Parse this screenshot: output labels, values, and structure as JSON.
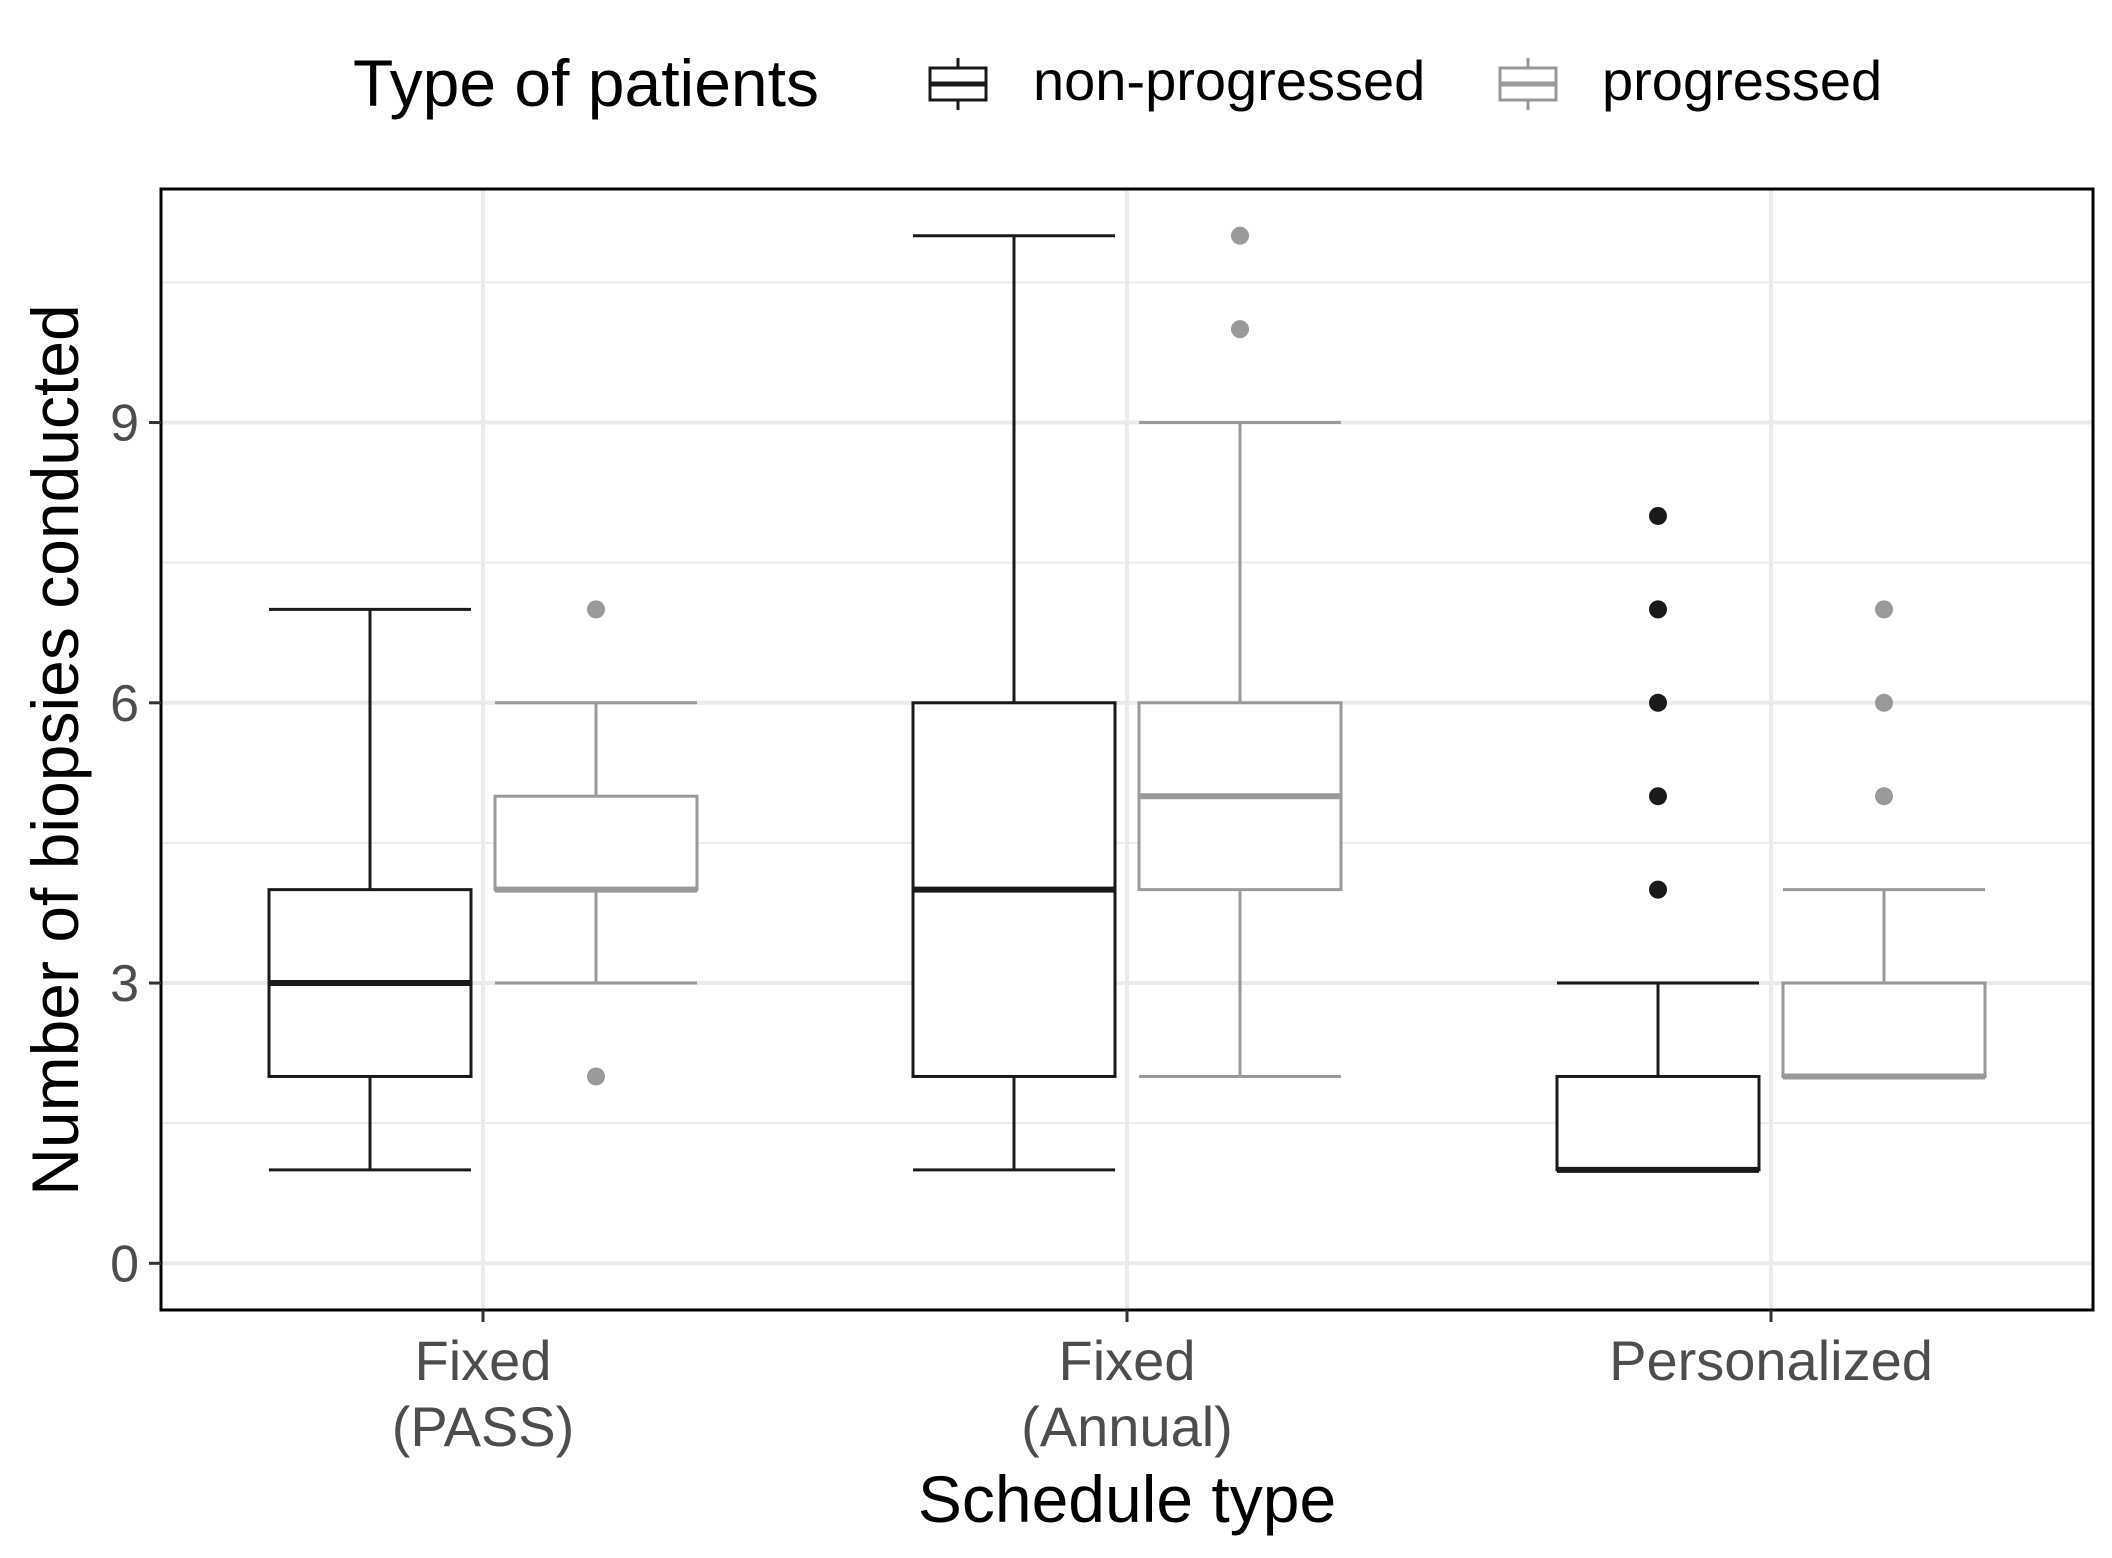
{
  "chart_data": {
    "type": "boxplot",
    "xlabel": "Schedule type",
    "ylabel": "Number of biopsies conducted",
    "ylim": [
      -0.5,
      11.5
    ],
    "yticks": [
      0,
      3,
      6,
      9
    ],
    "grid": true,
    "legend_position": "top",
    "legend": {
      "title": "Type of patients",
      "entries": [
        {
          "label": "non-progressed",
          "color": "#1a1a1a"
        },
        {
          "label": "progressed",
          "color": "#999999"
        }
      ]
    },
    "categories": [
      {
        "label_lines": [
          "Fixed",
          "(PASS)"
        ]
      },
      {
        "label_lines": [
          "Fixed",
          "(Annual)"
        ]
      },
      {
        "label_lines": [
          "Personalized"
        ]
      }
    ],
    "series": [
      {
        "name": "non-progressed",
        "color": "#1a1a1a",
        "boxes": [
          {
            "whisker_low": 1,
            "q1": 2,
            "median": 3,
            "q3": 4,
            "whisker_high": 7,
            "outliers": []
          },
          {
            "whisker_low": 1,
            "q1": 2,
            "median": 4,
            "q3": 6,
            "whisker_high": 11,
            "outliers": []
          },
          {
            "whisker_low": 1,
            "q1": 1,
            "median": 1,
            "q3": 2,
            "whisker_high": 3,
            "outliers": [
              4,
              5,
              6,
              7,
              8
            ]
          }
        ]
      },
      {
        "name": "progressed",
        "color": "#999999",
        "boxes": [
          {
            "whisker_low": 3,
            "q1": 4,
            "median": 4,
            "q3": 5,
            "whisker_high": 6,
            "outliers": [
              2,
              7
            ]
          },
          {
            "whisker_low": 2,
            "q1": 4,
            "median": 5,
            "q3": 6,
            "whisker_high": 9,
            "outliers": [
              10,
              11
            ]
          },
          {
            "whisker_low": 2,
            "q1": 2,
            "median": 2,
            "q3": 3,
            "whisker_high": 4,
            "outliers": [
              5,
              6,
              7
            ]
          }
        ]
      }
    ]
  }
}
